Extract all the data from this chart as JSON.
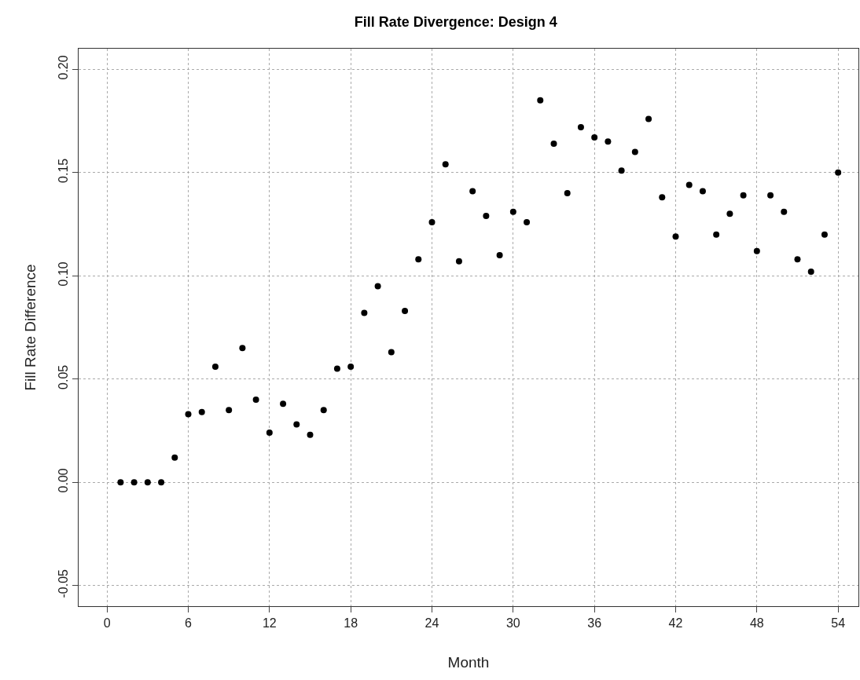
{
  "chart_data": {
    "type": "scatter",
    "title": "Fill Rate Divergence: Design 4",
    "xlabel": "Month",
    "ylabel": "Fill Rate Difference",
    "x": [
      1,
      2,
      3,
      4,
      5,
      6,
      7,
      8,
      9,
      10,
      11,
      12,
      13,
      14,
      15,
      16,
      17,
      18,
      19,
      20,
      21,
      22,
      23,
      24,
      25,
      26,
      27,
      28,
      29,
      30,
      31,
      32,
      33,
      34,
      35,
      36,
      37,
      38,
      39,
      40,
      41,
      42,
      43,
      44,
      45,
      46,
      47,
      48,
      49,
      50,
      51,
      52,
      53,
      54
    ],
    "series": [
      {
        "color": "#000000",
        "values": [
          0,
          0,
          0,
          0,
          0.012,
          0.033,
          0.034,
          0.056,
          0.035,
          0.065,
          0.04,
          0.024,
          0.038,
          0.028,
          0.023,
          0.035,
          0.055,
          0.056,
          0.082,
          0.095,
          0.063,
          0.083,
          0.108,
          0.126,
          0.154,
          0.107,
          0.141,
          0.129,
          0.11,
          0.131,
          0.126,
          0.185,
          0.164,
          0.14,
          0.172,
          0.167,
          0.165,
          0.151,
          0.16,
          0.176,
          0.138,
          0.119,
          0.144,
          0.141,
          0.12,
          0.13,
          0.139,
          0.112,
          0.139,
          0.131,
          0.108,
          0.102,
          0.12,
          0.15
        ]
      }
    ],
    "xlim": [
      -2.1,
      55.5
    ],
    "xticks": [
      0,
      6,
      12,
      18,
      24,
      30,
      36,
      42,
      48,
      54
    ],
    "ylim": [
      -0.06,
      0.21
    ],
    "yticks": [
      {
        "value": -0.05,
        "label": "-0.05"
      },
      {
        "value": 0,
        "label": "0.00"
      },
      {
        "value": 0.05,
        "label": "0.05"
      },
      {
        "value": 0.1,
        "label": "0.10"
      },
      {
        "value": 0.15,
        "label": "0.15"
      },
      {
        "value": 0.2,
        "label": "0.20"
      }
    ],
    "grid": true,
    "marker": "circle"
  }
}
